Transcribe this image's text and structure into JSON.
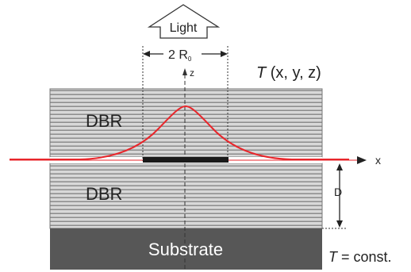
{
  "labels": {
    "light": "Light",
    "width": "2 R",
    "width_sub": "0",
    "z_axis": "z",
    "x_axis": "x",
    "temp_italic": "T",
    "temp_args": " (x, y, z)",
    "dbr_top": "DBR",
    "dbr_bottom": "DBR",
    "d_label": "D",
    "substrate": "Substrate",
    "boundary_italic": "T",
    "boundary_rest": " = const."
  },
  "colors": {
    "curve": "#e8262b",
    "substrate": "#575757",
    "mirror_fill": "#d4d4d4",
    "mirror_stripe": "#8c8c8c",
    "active_layer": "#1a1a1a"
  }
}
